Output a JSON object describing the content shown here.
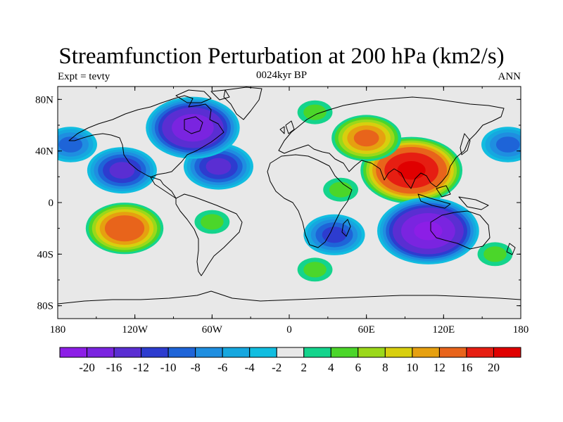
{
  "title": "Streamfunction Perturbation at 200 hPa (km2/s)",
  "subtitle_left": "Expt = tevty",
  "subtitle_center": "0024kyr BP",
  "subtitle_right": "ANN",
  "map": {
    "projection": "cylindrical-equidistant",
    "lon_range": [
      -180,
      180
    ],
    "lat_range": [
      -90,
      90
    ],
    "background_color": "#e8e8e8",
    "coastline_color": "#000000",
    "x_ticks": [
      "180",
      "120W",
      "60W",
      "0",
      "60E",
      "120E",
      "180"
    ],
    "y_ticks": [
      "80N",
      "40N",
      "0",
      "40S",
      "80S"
    ]
  },
  "colorbar": {
    "labels": [
      "-20",
      "-16",
      "-12",
      "-10",
      "-8",
      "-6",
      "-4",
      "-2",
      "2",
      "4",
      "6",
      "8",
      "10",
      "12",
      "16",
      "20"
    ],
    "colors": [
      "#8c1ee6",
      "#7a24e0",
      "#5a2ed2",
      "#2d3ccf",
      "#1e64d8",
      "#1f8ee0",
      "#16a7df",
      "#11bde0",
      "#e8e8e8",
      "#14d48c",
      "#4bd62a",
      "#9bd81a",
      "#d8cf0e",
      "#e6a010",
      "#e8641b",
      "#e61e12",
      "#e00000"
    ]
  },
  "chart_data": {
    "type": "heatmap",
    "variable": "Streamfunction Perturbation at 200 hPa",
    "units": "km2/s",
    "levels": [
      -20,
      -16,
      -12,
      -10,
      -8,
      -6,
      -4,
      -2,
      2,
      4,
      6,
      8,
      10,
      12,
      16,
      20
    ],
    "features": [
      {
        "lon": -130,
        "lat": 25,
        "value": -12
      },
      {
        "lon": -55,
        "lat": 28,
        "value": -12
      },
      {
        "lon": -75,
        "lat": 58,
        "value": -18
      },
      {
        "lon": -170,
        "lat": 45,
        "value": -8
      },
      {
        "lon": 170,
        "lat": 45,
        "value": -8
      },
      {
        "lon": 95,
        "lat": 25,
        "value": 20
      },
      {
        "lon": 60,
        "lat": 50,
        "value": 12
      },
      {
        "lon": -128,
        "lat": -20,
        "value": 14
      },
      {
        "lon": 108,
        "lat": -22,
        "value": -20
      },
      {
        "lon": 35,
        "lat": -25,
        "value": -10
      },
      {
        "lon": 20,
        "lat": -52,
        "value": 4
      },
      {
        "lon": 20,
        "lat": 70,
        "value": 4
      },
      {
        "lon": 40,
        "lat": 10,
        "value": 4
      },
      {
        "lon": 160,
        "lat": -40,
        "value": 4
      },
      {
        "lon": -60,
        "lat": -15,
        "value": 4
      }
    ]
  }
}
